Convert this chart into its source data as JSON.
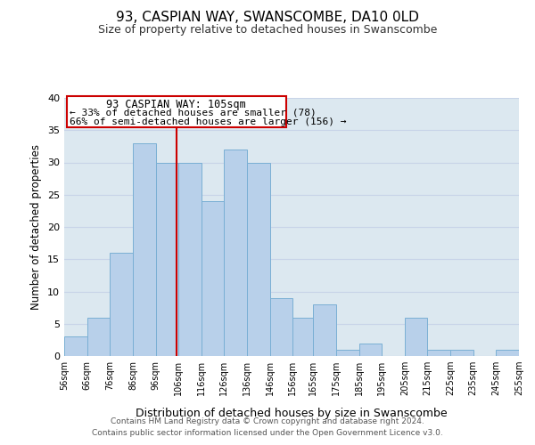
{
  "title": "93, CASPIAN WAY, SWANSCOMBE, DA10 0LD",
  "subtitle": "Size of property relative to detached houses in Swanscombe",
  "xlabel": "Distribution of detached houses by size in Swanscombe",
  "ylabel": "Number of detached properties",
  "bar_left_edges": [
    56,
    66,
    76,
    86,
    96,
    106,
    116,
    126,
    136,
    146,
    156,
    165,
    175,
    185,
    195,
    205,
    215,
    225,
    235,
    245
  ],
  "bar_heights": [
    3,
    6,
    16,
    33,
    30,
    30,
    24,
    32,
    30,
    9,
    6,
    8,
    1,
    2,
    0,
    6,
    1,
    1,
    0,
    1
  ],
  "bar_widths": [
    10,
    10,
    10,
    10,
    10,
    10,
    10,
    10,
    10,
    10,
    9,
    10,
    10,
    10,
    10,
    10,
    10,
    10,
    10,
    10
  ],
  "bar_color": "#b8d0ea",
  "bar_edgecolor": "#7aafd4",
  "vline_x": 105,
  "vline_color": "#cc0000",
  "xlim": [
    56,
    255
  ],
  "ylim": [
    0,
    40
  ],
  "yticks": [
    0,
    5,
    10,
    15,
    20,
    25,
    30,
    35,
    40
  ],
  "xtick_labels": [
    "56sqm",
    "66sqm",
    "76sqm",
    "86sqm",
    "96sqm",
    "106sqm",
    "116sqm",
    "126sqm",
    "136sqm",
    "146sqm",
    "156sqm",
    "165sqm",
    "175sqm",
    "185sqm",
    "195sqm",
    "205sqm",
    "215sqm",
    "225sqm",
    "235sqm",
    "245sqm",
    "255sqm"
  ],
  "xtick_positions": [
    56,
    66,
    76,
    86,
    96,
    106,
    116,
    126,
    136,
    146,
    156,
    165,
    175,
    185,
    195,
    205,
    215,
    225,
    235,
    245,
    255
  ],
  "annotation_title": "93 CASPIAN WAY: 105sqm",
  "annotation_line1": "← 33% of detached houses are smaller (78)",
  "annotation_line2": "66% of semi-detached houses are larger (156) →",
  "annotation_box_color": "#cc0000",
  "footer_line1": "Contains HM Land Registry data © Crown copyright and database right 2024.",
  "footer_line2": "Contains public sector information licensed under the Open Government Licence v3.0.",
  "grid_color": "#c8d4e8",
  "background_color": "#dce8f0"
}
